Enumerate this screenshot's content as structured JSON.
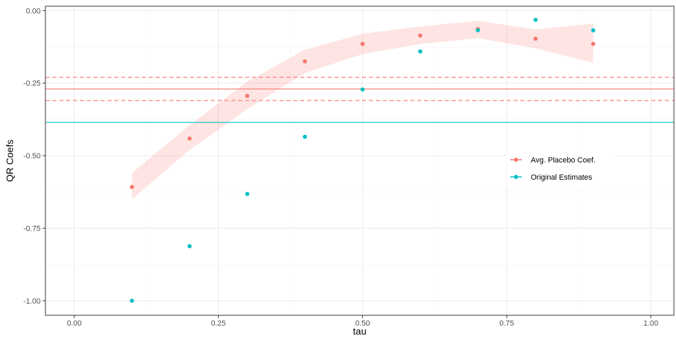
{
  "chart_data": {
    "type": "scatter",
    "xlabel": "tau",
    "ylabel": "QR Coefs",
    "xlim": [
      -0.05,
      1.04
    ],
    "ylim": [
      -1.05,
      0.015
    ],
    "x_ticks": [
      0.0,
      0.25,
      0.5,
      0.75,
      1.0
    ],
    "x_tick_labels": [
      "0.00",
      "0.25",
      "0.50",
      "0.75",
      "1.00"
    ],
    "y_ticks": [
      0.0,
      -0.25,
      -0.5,
      -0.75,
      -1.0
    ],
    "y_tick_labels": [
      "0.00",
      "-0.25",
      "-0.50",
      "-0.75",
      "-1.00"
    ],
    "grid": true,
    "legend_position": "right-center inside",
    "series": [
      {
        "name": "Avg. Placebo Coef.",
        "color": "#F8766D",
        "x": [
          0.1,
          0.2,
          0.3,
          0.4,
          0.5,
          0.6,
          0.7,
          0.8,
          0.9
        ],
        "y": [
          -0.608,
          -0.441,
          -0.294,
          -0.175,
          -0.115,
          -0.086,
          -0.064,
          -0.097,
          -0.115
        ]
      },
      {
        "name": "Original Estimates",
        "color": "#00BFC4",
        "x": [
          0.1,
          0.2,
          0.3,
          0.4,
          0.5,
          0.6,
          0.7,
          0.8,
          0.9
        ],
        "y": [
          -1.0,
          -0.812,
          -0.632,
          -0.435,
          -0.272,
          -0.141,
          -0.068,
          -0.032,
          -0.068
        ]
      }
    ],
    "band": {
      "color": "#F8766D",
      "x": [
        0.1,
        0.2,
        0.3,
        0.4,
        0.5,
        0.6,
        0.7,
        0.8,
        0.9
      ],
      "lower": [
        -0.65,
        -0.48,
        -0.34,
        -0.215,
        -0.15,
        -0.115,
        -0.095,
        -0.13,
        -0.18
      ],
      "upper": [
        -0.56,
        -0.395,
        -0.245,
        -0.135,
        -0.08,
        -0.055,
        -0.035,
        -0.065,
        -0.045
      ]
    },
    "hlines": [
      {
        "series": "Avg. Placebo Coef.",
        "y": -0.27,
        "style": "solid",
        "color": "#F8766D"
      },
      {
        "series": "Avg. Placebo Coef.",
        "y": -0.23,
        "style": "dashed",
        "color": "#F8766D"
      },
      {
        "series": "Avg. Placebo Coef.",
        "y": -0.31,
        "style": "dashed",
        "color": "#F8766D"
      },
      {
        "series": "Original Estimates",
        "y": -0.385,
        "style": "solid",
        "color": "#00BFC4"
      }
    ]
  }
}
